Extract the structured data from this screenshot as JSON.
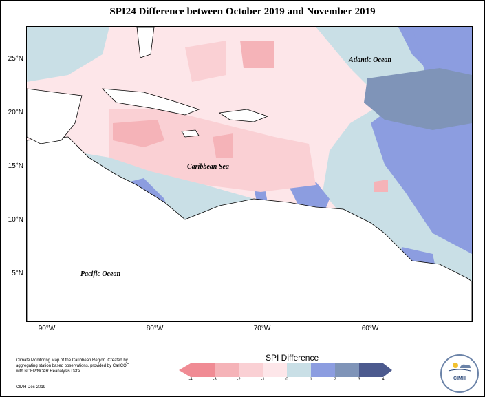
{
  "title": "SPI24 Difference between October 2019 and November 2019",
  "lat_labels": [
    "25°N",
    "20°N",
    "15°N",
    "10°N",
    "5°N"
  ],
  "lon_labels": [
    "90°W",
    "80°W",
    "70°W",
    "60°W"
  ],
  "labels": {
    "atlantic": "Atlantic Ocean",
    "caribbean": "Caribbean Sea",
    "pacific": "Pacific Ocean"
  },
  "legend": {
    "title": "SPI Difference",
    "ticks": [
      "-4",
      "-3",
      "-2",
      "-1",
      "0",
      "1",
      "2",
      "3",
      "4"
    ],
    "colors": [
      "#f08b94",
      "#f5b3b8",
      "#fad0d4",
      "#fde6e9",
      "#c9dfe6",
      "#8c9de0",
      "#7f94b8",
      "#4c5a8e"
    ]
  },
  "credits": "Climate Monitoring Map of the Caribbean Region. Created by aggregating station based observations, provided by CariCOF, with NCEP/NCAR Reanalysis Data.",
  "date": "CIMH Dec-2019",
  "logo_text": "CIMH"
}
